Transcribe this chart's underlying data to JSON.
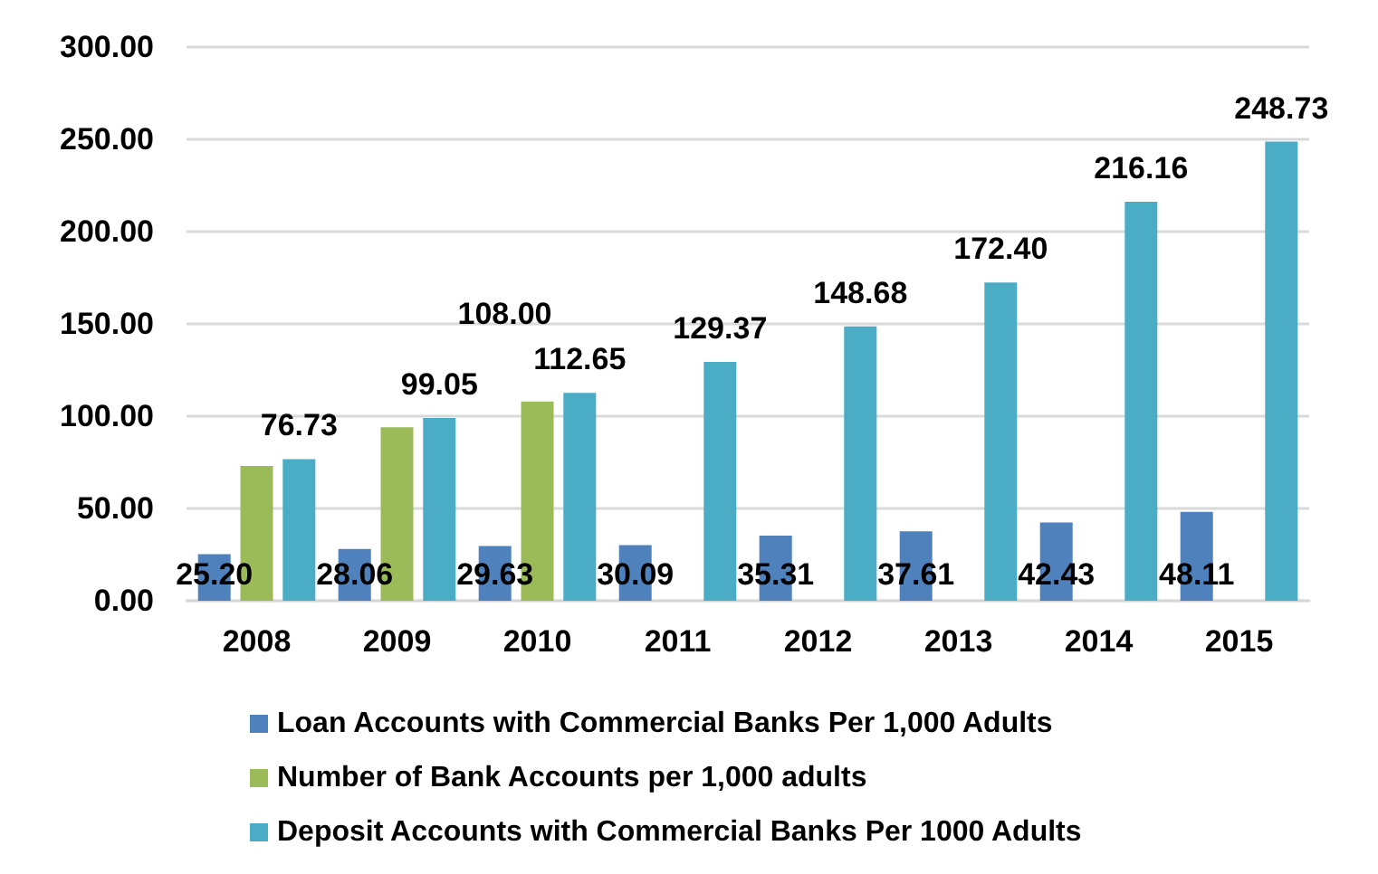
{
  "chart_data": {
    "type": "bar",
    "categories": [
      "2008",
      "2009",
      "2010",
      "2011",
      "2012",
      "2013",
      "2014",
      "2015"
    ],
    "series": [
      {
        "name": "Loan Accounts with Commercial Banks Per 1,000 Adults",
        "color": "#4f81bd",
        "values": [
          25.2,
          28.06,
          29.63,
          30.09,
          35.31,
          37.61,
          42.43,
          48.11
        ],
        "value_labels": [
          "25.20",
          "28.06",
          "29.63",
          "30.09",
          "35.31",
          "37.61",
          "42.43",
          "48.11"
        ]
      },
      {
        "name": "Number of Bank Accounts per 1,000 adults",
        "color": "#9bbb59",
        "values": [
          73,
          94,
          108.0,
          null,
          null,
          null,
          null,
          null
        ],
        "value_labels": [
          null,
          null,
          "108.00",
          null,
          null,
          null,
          null,
          null
        ]
      },
      {
        "name": "Deposit Accounts with Commercial Banks Per 1000 Adults",
        "color": "#4bacc6",
        "values": [
          76.73,
          99.05,
          112.65,
          129.37,
          148.68,
          172.4,
          216.16,
          248.73
        ],
        "value_labels": [
          "76.73",
          "99.05",
          "112.65",
          "129.37",
          "148.68",
          "172.40",
          "216.16",
          "248.73"
        ]
      }
    ],
    "ylim": [
      0,
      300
    ],
    "yticks": [
      {
        "value": 0,
        "label": "0.00"
      },
      {
        "value": 50,
        "label": "50.00"
      },
      {
        "value": 100,
        "label": "100.00"
      },
      {
        "value": 150,
        "label": "150.00"
      },
      {
        "value": 200,
        "label": "200.00"
      },
      {
        "value": 250,
        "label": "250.00"
      },
      {
        "value": 300,
        "label": "300.00"
      }
    ],
    "grid": "y",
    "legend": "bottom"
  }
}
